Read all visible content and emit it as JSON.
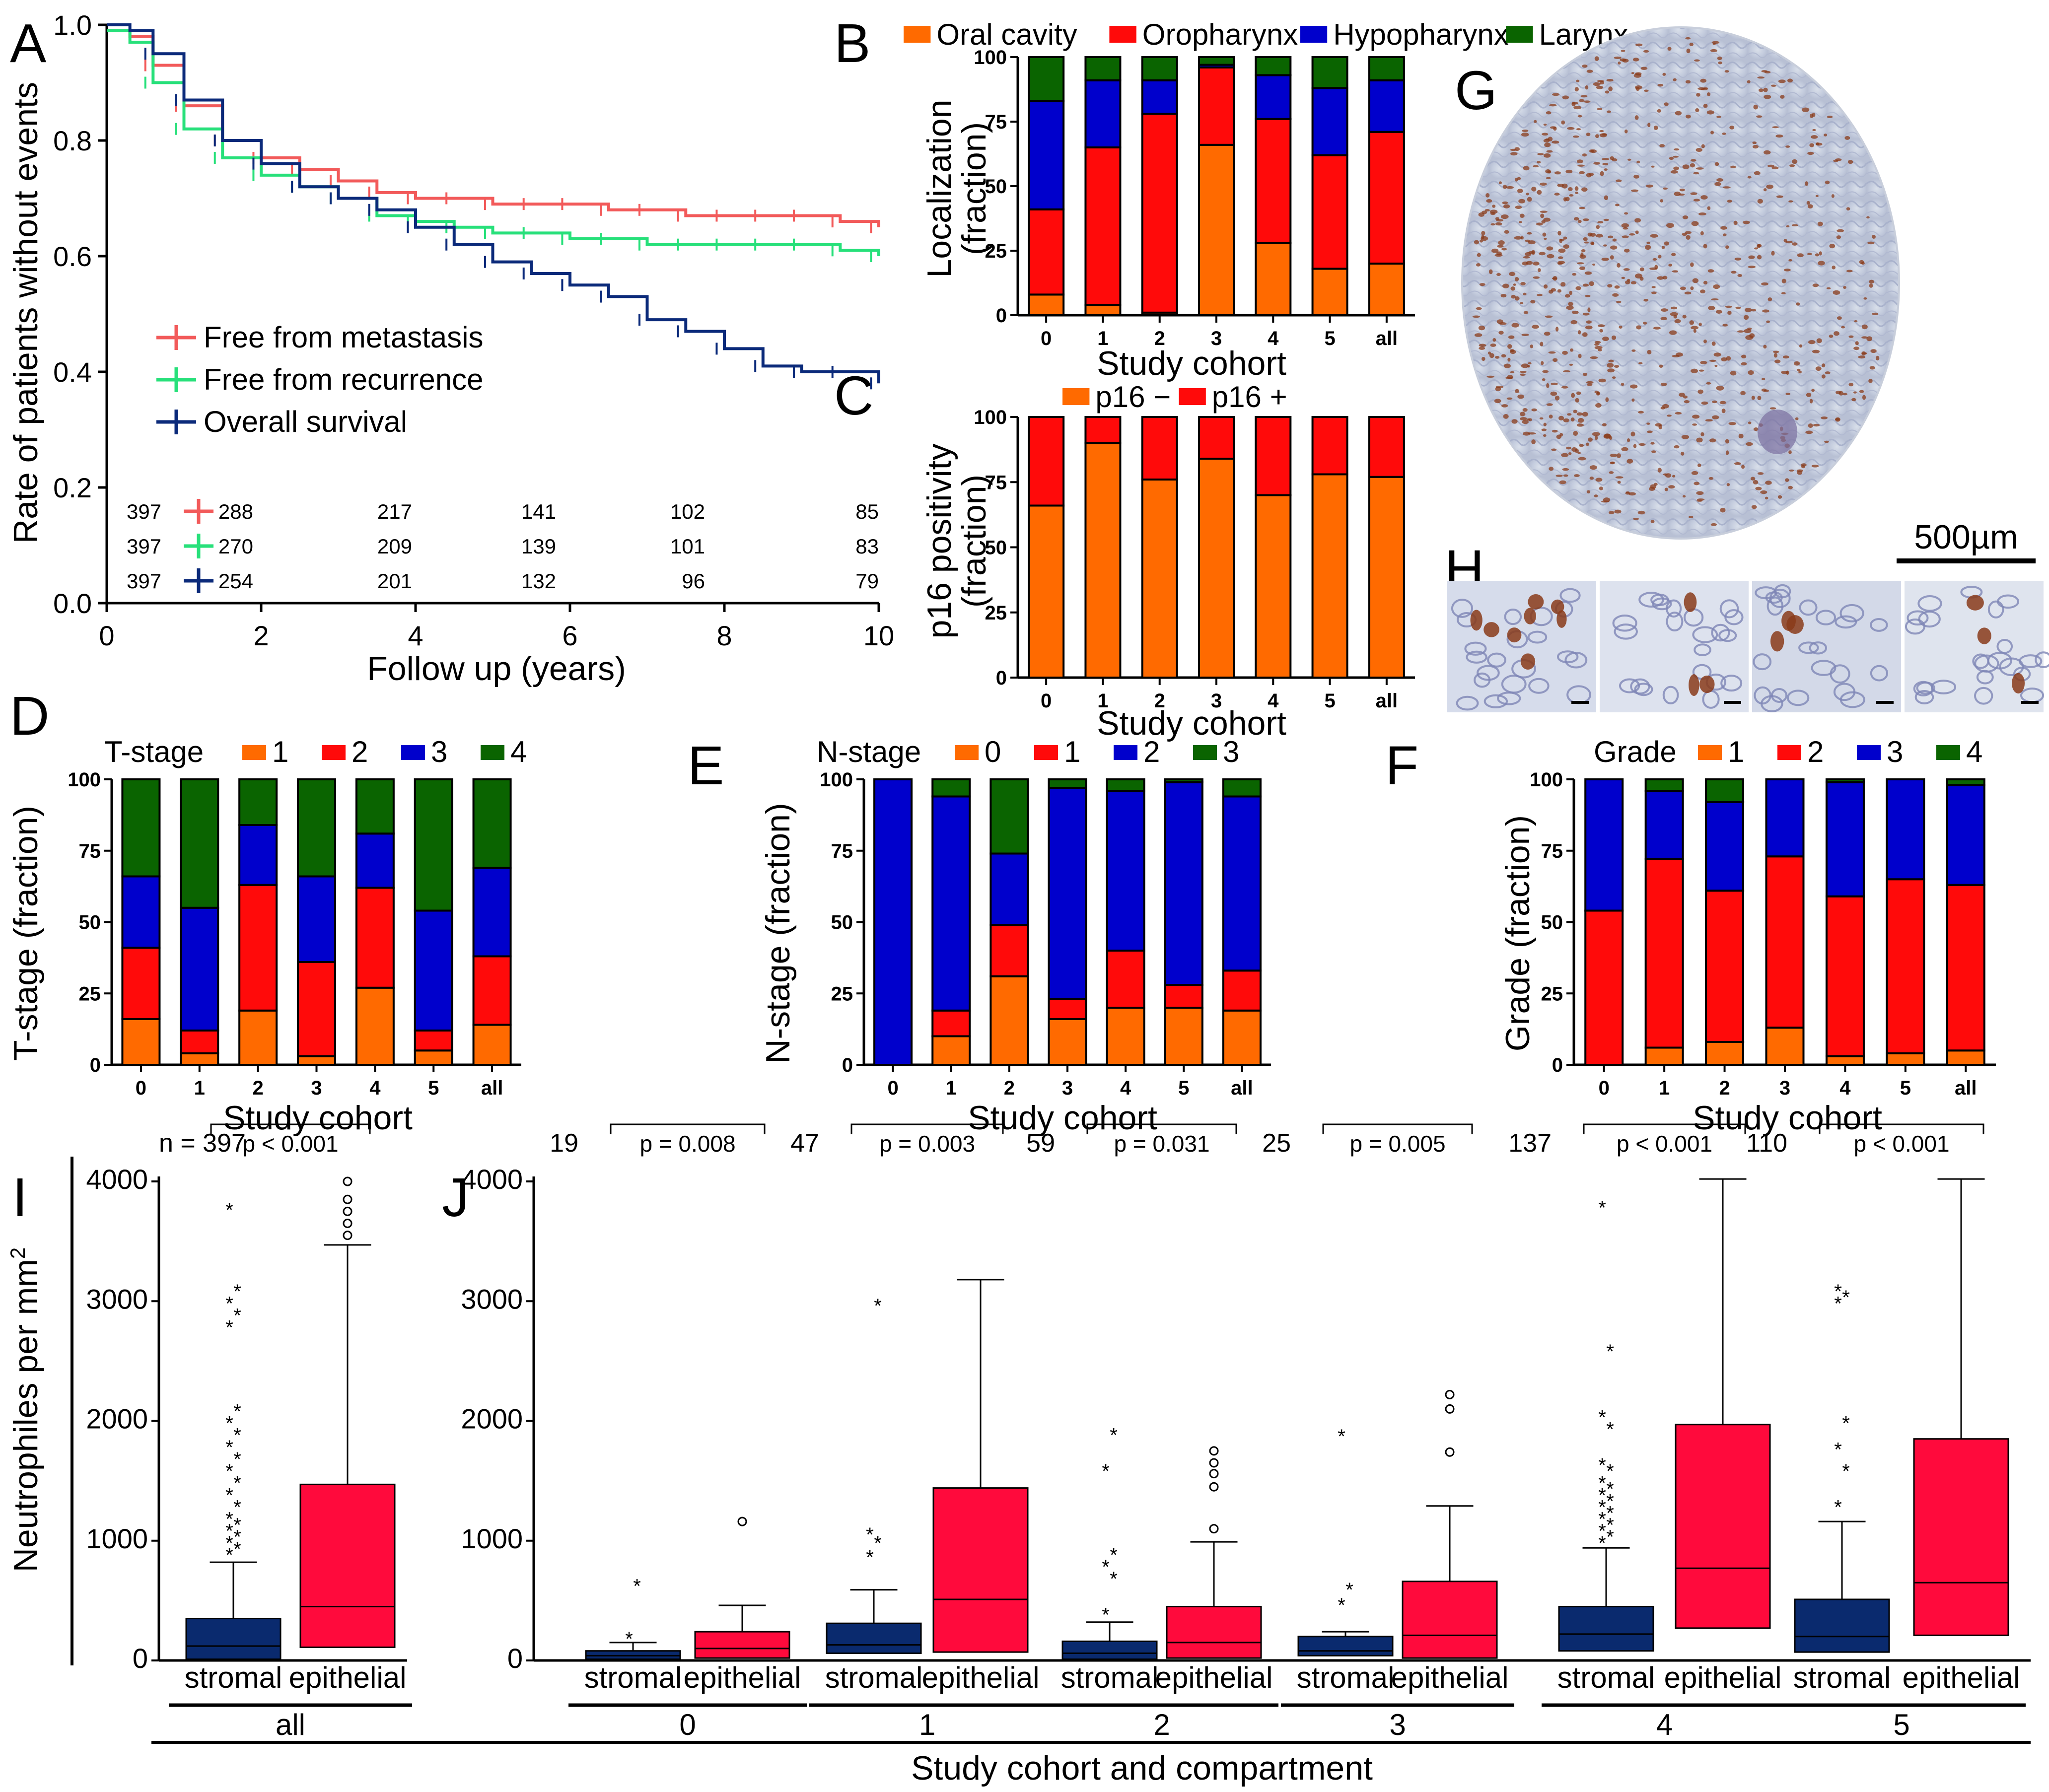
{
  "panels": {
    "a": {
      "label": "A",
      "xlabel": "Follow up (years)",
      "ylabel": "Rate of patients without events"
    },
    "b": {
      "label": "B",
      "xlabel": "Study cohort",
      "ylabel_lines": [
        "Localization",
        "(fraction)"
      ]
    },
    "c": {
      "label": "C",
      "xlabel": "Study cohort",
      "ylabel_lines": [
        "p16 positivity",
        "(fraction)"
      ]
    },
    "d": {
      "label": "D",
      "xlabel": "Study cohort",
      "ylabel": "T-stage (fraction)",
      "legend_title": "T-stage"
    },
    "e": {
      "label": "E",
      "xlabel": "Study cohort",
      "ylabel": "N-stage (fraction)",
      "legend_title": "N-stage"
    },
    "f": {
      "label": "F",
      "xlabel": "Study cohort",
      "ylabel": "Grade (fraction)",
      "legend_title": "Grade"
    },
    "g": {
      "label": "G",
      "scale": "500µm"
    },
    "h": {
      "label": "H"
    },
    "i": {
      "label": "I",
      "ylabel": "Neutrophiles per mm",
      "ylabel_sup": "2"
    },
    "j": {
      "label": "J",
      "xlabel": "Study cohort and compartment"
    }
  },
  "colors": {
    "orange": "#ff6a00",
    "red": "#ff0a0a",
    "blue": "#0000cc",
    "green": "#0a6400",
    "km_metastasis": "#f25a5a",
    "km_recurrence": "#27e07a",
    "km_survival": "#0b2a7a",
    "box_stromal": "#0a2a6e",
    "box_epithelial": "#ff0a3c"
  },
  "chart_data": [
    {
      "id": "A",
      "type": "line",
      "xlabel": "Follow up (years)",
      "ylabel": "Rate of patients without events",
      "xlim": [
        0,
        10
      ],
      "ylim": [
        0,
        1.0
      ],
      "xticks": [
        0,
        2,
        4,
        6,
        8,
        10
      ],
      "yticks": [
        "0.0",
        "0.2",
        "0.4",
        "0.6",
        "0.8",
        "1.0"
      ],
      "series": [
        {
          "name": "Free from metastasis",
          "color": "#f25a5a",
          "x": [
            0,
            0.3,
            0.6,
            1,
            1.5,
            2,
            2.5,
            3,
            3.5,
            4,
            4.5,
            5,
            5.5,
            6,
            6.5,
            7,
            7.5,
            8,
            8.5,
            9,
            9.5,
            10
          ],
          "y": [
            0.99,
            0.98,
            0.93,
            0.86,
            0.8,
            0.77,
            0.75,
            0.73,
            0.71,
            0.7,
            0.7,
            0.69,
            0.69,
            0.69,
            0.68,
            0.68,
            0.67,
            0.67,
            0.67,
            0.67,
            0.66,
            0.65
          ]
        },
        {
          "name": "Free from recurrence",
          "color": "#27e07a",
          "x": [
            0,
            0.3,
            0.6,
            1,
            1.5,
            2,
            2.5,
            3,
            3.5,
            4,
            4.5,
            5,
            5.5,
            6,
            6.5,
            7,
            7.5,
            8,
            8.5,
            9,
            9.5,
            10
          ],
          "y": [
            0.99,
            0.97,
            0.9,
            0.82,
            0.77,
            0.74,
            0.72,
            0.7,
            0.67,
            0.66,
            0.65,
            0.64,
            0.64,
            0.63,
            0.63,
            0.62,
            0.62,
            0.62,
            0.62,
            0.62,
            0.61,
            0.6
          ]
        },
        {
          "name": "Overall survival",
          "color": "#0b2a7a",
          "x": [
            0,
            0.3,
            0.6,
            1,
            1.5,
            2,
            2.5,
            3,
            3.5,
            4,
            4.5,
            5,
            5.5,
            6,
            6.5,
            7,
            7.5,
            8,
            8.5,
            9,
            9.5,
            10
          ],
          "y": [
            1.0,
            0.99,
            0.95,
            0.87,
            0.8,
            0.76,
            0.72,
            0.7,
            0.68,
            0.65,
            0.62,
            0.59,
            0.57,
            0.55,
            0.53,
            0.49,
            0.47,
            0.44,
            0.41,
            0.4,
            0.4,
            0.38
          ]
        }
      ],
      "risk_table": {
        "columns": [
          0,
          2,
          4,
          6,
          8,
          10
        ],
        "rows": [
          [
            "397",
            "288",
            "217",
            "141",
            "102",
            "85"
          ],
          [
            "397",
            "270",
            "209",
            "139",
            "101",
            "83"
          ],
          [
            "397",
            "254",
            "201",
            "132",
            "96",
            "79"
          ]
        ]
      }
    },
    {
      "id": "B",
      "type": "bar",
      "stacked": true,
      "ylim": [
        0,
        100
      ],
      "xlabel": "Study cohort",
      "ylabel": "Localization (fraction)",
      "yticks": [
        "0",
        "25",
        "50",
        "75",
        "100"
      ],
      "categories": [
        "0",
        "1",
        "2",
        "3",
        "4",
        "5",
        "all"
      ],
      "series": [
        {
          "name": "Oral cavity",
          "color": "#ff6a00",
          "values": [
            8,
            4,
            1,
            66,
            28,
            18,
            20
          ]
        },
        {
          "name": "Oropharynx",
          "color": "#ff0a0a",
          "values": [
            33,
            61,
            77,
            30,
            48,
            44,
            51
          ]
        },
        {
          "name": "Hypopharynx",
          "color": "#0000cc",
          "values": [
            42,
            26,
            13,
            1,
            17,
            26,
            20
          ]
        },
        {
          "name": "Larynx",
          "color": "#0a6400",
          "values": [
            17,
            9,
            9,
            3,
            7,
            12,
            9
          ]
        }
      ]
    },
    {
      "id": "C",
      "type": "bar",
      "stacked": true,
      "ylim": [
        0,
        100
      ],
      "xlabel": "Study cohort",
      "ylabel": "p16 positivity (fraction)",
      "yticks": [
        "0",
        "25",
        "50",
        "75",
        "100"
      ],
      "categories": [
        "0",
        "1",
        "2",
        "3",
        "4",
        "5",
        "all"
      ],
      "series": [
        {
          "name": "p16 −",
          "color": "#ff6a00",
          "values": [
            66,
            90,
            76,
            84,
            70,
            78,
            77
          ]
        },
        {
          "name": "p16 +",
          "color": "#ff0a0a",
          "values": [
            34,
            10,
            24,
            16,
            30,
            22,
            23
          ]
        }
      ]
    },
    {
      "id": "D",
      "type": "bar",
      "stacked": true,
      "ylim": [
        0,
        100
      ],
      "xlabel": "Study cohort",
      "ylabel": "T-stage (fraction)",
      "legend_title": "T-stage",
      "yticks": [
        "0",
        "25",
        "50",
        "75",
        "100"
      ],
      "categories": [
        "0",
        "1",
        "2",
        "3",
        "4",
        "5",
        "all"
      ],
      "series": [
        {
          "name": "1",
          "color": "#ff6a00",
          "values": [
            16,
            4,
            19,
            3,
            27,
            5,
            14
          ]
        },
        {
          "name": "2",
          "color": "#ff0a0a",
          "values": [
            25,
            8,
            44,
            33,
            35,
            7,
            24
          ]
        },
        {
          "name": "3",
          "color": "#0000cc",
          "values": [
            25,
            43,
            21,
            30,
            19,
            42,
            31
          ]
        },
        {
          "name": "4",
          "color": "#0a6400",
          "values": [
            34,
            45,
            16,
            34,
            19,
            46,
            31
          ]
        }
      ]
    },
    {
      "id": "E",
      "type": "bar",
      "stacked": true,
      "ylim": [
        0,
        100
      ],
      "xlabel": "Study cohort",
      "ylabel": "N-stage (fraction)",
      "legend_title": "N-stage",
      "yticks": [
        "0",
        "25",
        "50",
        "75",
        "100"
      ],
      "categories": [
        "0",
        "1",
        "2",
        "3",
        "4",
        "5",
        "all"
      ],
      "series": [
        {
          "name": "0",
          "color": "#ff6a00",
          "values": [
            0,
            10,
            31,
            16,
            20,
            20,
            19
          ]
        },
        {
          "name": "1",
          "color": "#ff0a0a",
          "values": [
            0,
            9,
            18,
            7,
            20,
            8,
            14
          ]
        },
        {
          "name": "2",
          "color": "#0000cc",
          "values": [
            100,
            75,
            25,
            74,
            56,
            71,
            61
          ]
        },
        {
          "name": "3",
          "color": "#0a6400",
          "values": [
            0,
            6,
            26,
            3,
            4,
            1,
            6
          ]
        }
      ]
    },
    {
      "id": "F",
      "type": "bar",
      "stacked": true,
      "ylim": [
        0,
        100
      ],
      "xlabel": "Study cohort",
      "ylabel": "Grade (fraction)",
      "legend_title": "Grade",
      "yticks": [
        "0",
        "25",
        "50",
        "75",
        "100"
      ],
      "categories": [
        "0",
        "1",
        "2",
        "3",
        "4",
        "5",
        "all"
      ],
      "series": [
        {
          "name": "1",
          "color": "#ff6a00",
          "values": [
            0,
            6,
            8,
            13,
            3,
            4,
            5
          ]
        },
        {
          "name": "2",
          "color": "#ff0a0a",
          "values": [
            54,
            66,
            53,
            60,
            56,
            61,
            58
          ]
        },
        {
          "name": "3",
          "color": "#0000cc",
          "values": [
            46,
            24,
            31,
            27,
            40,
            35,
            35
          ]
        },
        {
          "name": "4",
          "color": "#0a6400",
          "values": [
            0,
            4,
            8,
            0,
            1,
            0,
            2
          ]
        }
      ]
    },
    {
      "id": "I",
      "type": "box",
      "ylim": [
        0,
        4000
      ],
      "yticks": [
        "0",
        "1000",
        "2000",
        "3000",
        "4000"
      ],
      "ylabel": "Neutrophiles per mm²",
      "groups": [
        {
          "label": "all",
          "n": "n = 397",
          "p": "p < 0.001",
          "boxes": [
            {
              "name": "stromal",
              "q1": 10,
              "median": 120,
              "q3": 350,
              "whisker_low": 0,
              "whisker_high": 820,
              "outliers": [
                900,
                950,
                1000,
                1050,
                1100,
                1150,
                1200,
                1300,
                1400,
                1500,
                1600,
                1700,
                1800,
                1900,
                2000,
                2100,
                2800,
                2900,
                3000,
                3100,
                3780
              ]
            },
            {
              "name": "epithelial",
              "q1": 110,
              "median": 450,
              "q3": 1470,
              "whisker_low": 0,
              "whisker_high": 3470,
              "outliers": [
                3550,
                3650,
                3750,
                3850,
                4000
              ]
            }
          ]
        }
      ]
    },
    {
      "id": "J",
      "type": "box",
      "ylim": [
        0,
        4000
      ],
      "yticks": [
        "0",
        "1000",
        "2000",
        "3000",
        "4000"
      ],
      "xlabel": "Study cohort and compartment",
      "groups": [
        {
          "label": "0",
          "n": "19",
          "p": "p = 0.008",
          "boxes": [
            {
              "name": "stromal",
              "q1": 10,
              "median": 40,
              "q3": 80,
              "whisker_low": 0,
              "whisker_high": 150,
              "outliers": [
                200,
                640
              ]
            },
            {
              "name": "epithelial",
              "q1": 20,
              "median": 100,
              "q3": 240,
              "whisker_low": 0,
              "whisker_high": 460,
              "outliers": [
                1160
              ]
            }
          ]
        },
        {
          "label": "1",
          "n": "47",
          "p": "p = 0.003",
          "boxes": [
            {
              "name": "stromal",
              "q1": 60,
              "median": 130,
              "q3": 310,
              "whisker_low": 0,
              "whisker_high": 590,
              "outliers": [
                880,
                1000,
                1070,
                2980
              ]
            },
            {
              "name": "epithelial",
              "q1": 70,
              "median": 510,
              "q3": 1440,
              "whisker_low": 0,
              "whisker_high": 3180,
              "outliers": []
            }
          ]
        },
        {
          "label": "2",
          "n": "59",
          "p": "p = 0.031",
          "boxes": [
            {
              "name": "stromal",
              "q1": 10,
              "median": 60,
              "q3": 160,
              "whisker_low": 0,
              "whisker_high": 320,
              "outliers": [
                400,
                700,
                800,
                900,
                1600,
                1900
              ]
            },
            {
              "name": "epithelial",
              "q1": 20,
              "median": 150,
              "q3": 450,
              "whisker_low": 0,
              "whisker_high": 990,
              "outliers": [
                1100,
                1450,
                1560,
                1650,
                1750
              ]
            }
          ]
        },
        {
          "label": "3",
          "n": "25",
          "p": "p = 0.005",
          "boxes": [
            {
              "name": "stromal",
              "q1": 40,
              "median": 80,
              "q3": 200,
              "whisker_low": 0,
              "whisker_high": 240,
              "outliers": [
                480,
                610,
                1890
              ]
            },
            {
              "name": "epithelial",
              "q1": 20,
              "median": 210,
              "q3": 660,
              "whisker_low": 0,
              "whisker_high": 1290,
              "outliers": [
                1740,
                2100,
                2220
              ]
            }
          ]
        },
        {
          "label": "4",
          "n": "137",
          "p": "p < 0.001",
          "boxes": [
            {
              "name": "stromal",
              "q1": 80,
              "median": 220,
              "q3": 450,
              "whisker_low": 0,
              "whisker_high": 940,
              "outliers": [
                1000,
                1050,
                1100,
                1150,
                1200,
                1250,
                1300,
                1350,
                1400,
                1450,
                1500,
                1600,
                1650,
                1950,
                2050,
                2600,
                3800
              ]
            },
            {
              "name": "epithelial",
              "q1": 270,
              "median": 770,
              "q3": 1970,
              "whisker_low": 0,
              "whisker_high": 4020,
              "outliers": []
            }
          ]
        },
        {
          "label": "5",
          "n": "110",
          "p": "p < 0.001",
          "boxes": [
            {
              "name": "stromal",
              "q1": 70,
              "median": 200,
              "q3": 510,
              "whisker_low": 0,
              "whisker_high": 1160,
              "outliers": [
                1300,
                1600,
                1780,
                2000,
                3000,
                3050,
                3100
              ]
            },
            {
              "name": "epithelial",
              "q1": 210,
              "median": 650,
              "q3": 1850,
              "whisker_low": 0,
              "whisker_high": 4020,
              "outliers": []
            }
          ]
        }
      ]
    }
  ]
}
